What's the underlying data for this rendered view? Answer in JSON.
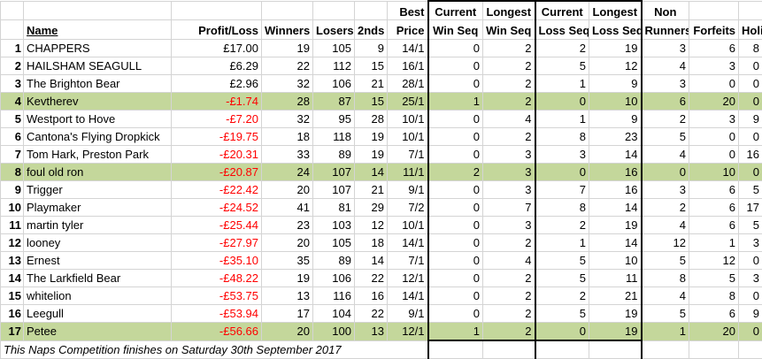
{
  "headers": {
    "rank": "",
    "name": "Name",
    "profit_loss": "Profit/Loss",
    "winners": "Winners",
    "losers": "Losers",
    "seconds": "2nds",
    "best_price": [
      "Best",
      "Price"
    ],
    "current_win_seq": [
      "Current",
      "Win Seq"
    ],
    "longest_win_seq": [
      "Longest",
      "Win Seq"
    ],
    "current_loss_seq": [
      "Current",
      "Loss Seq"
    ],
    "longest_loss_seq": [
      "Longest",
      "Loss Seq"
    ],
    "non_runners": [
      "Non",
      "Runners"
    ],
    "forfeits": "Forfeits",
    "holiday": "Holiday"
  },
  "rows": [
    {
      "rank": "1",
      "name": "CHAPPERS",
      "pl": "£17.00",
      "neg": false,
      "hl": false,
      "win": "19",
      "los": "105",
      "sec": "9",
      "best": "14/1",
      "cws": "0",
      "lws": "2",
      "cls": "2",
      "lls": "19",
      "nr": "3",
      "ff": "6",
      "hol": "8"
    },
    {
      "rank": "2",
      "name": "HAILSHAM SEAGULL",
      "pl": "£6.29",
      "neg": false,
      "hl": false,
      "win": "22",
      "los": "112",
      "sec": "15",
      "best": "16/1",
      "cws": "0",
      "lws": "2",
      "cls": "5",
      "lls": "12",
      "nr": "4",
      "ff": "3",
      "hol": "0"
    },
    {
      "rank": "3",
      "name": "The Brighton Bear",
      "pl": "£2.96",
      "neg": false,
      "hl": false,
      "win": "32",
      "los": "106",
      "sec": "21",
      "best": "28/1",
      "cws": "0",
      "lws": "2",
      "cls": "1",
      "lls": "9",
      "nr": "3",
      "ff": "0",
      "hol": "0"
    },
    {
      "rank": "4",
      "name": "Kevtherev",
      "pl": "-£1.74",
      "neg": true,
      "hl": true,
      "win": "28",
      "los": "87",
      "sec": "15",
      "best": "25/1",
      "cws": "1",
      "lws": "2",
      "cls": "0",
      "lls": "10",
      "nr": "6",
      "ff": "20",
      "hol": "0"
    },
    {
      "rank": "5",
      "name": "Westport to Hove",
      "pl": "-£7.20",
      "neg": true,
      "hl": false,
      "win": "32",
      "los": "95",
      "sec": "28",
      "best": "10/1",
      "cws": "0",
      "lws": "4",
      "cls": "1",
      "lls": "9",
      "nr": "2",
      "ff": "3",
      "hol": "9"
    },
    {
      "rank": "6",
      "name": "Cantona's Flying Dropkick",
      "pl": "-£19.75",
      "neg": true,
      "hl": false,
      "win": "18",
      "los": "118",
      "sec": "19",
      "best": "10/1",
      "cws": "0",
      "lws": "2",
      "cls": "8",
      "lls": "23",
      "nr": "5",
      "ff": "0",
      "hol": "0"
    },
    {
      "rank": "7",
      "name": "Tom Hark, Preston Park",
      "pl": "-£20.31",
      "neg": true,
      "hl": false,
      "win": "33",
      "los": "89",
      "sec": "19",
      "best": "7/1",
      "cws": "0",
      "lws": "3",
      "cls": "3",
      "lls": "14",
      "nr": "4",
      "ff": "0",
      "hol": "16"
    },
    {
      "rank": "8",
      "name": "foul old ron",
      "pl": "-£20.87",
      "neg": true,
      "hl": true,
      "win": "24",
      "los": "107",
      "sec": "14",
      "best": "11/1",
      "cws": "2",
      "lws": "3",
      "cls": "0",
      "lls": "16",
      "nr": "0",
      "ff": "10",
      "hol": "0"
    },
    {
      "rank": "9",
      "name": "Trigger",
      "pl": "-£22.42",
      "neg": true,
      "hl": false,
      "win": "20",
      "los": "107",
      "sec": "21",
      "best": "9/1",
      "cws": "0",
      "lws": "3",
      "cls": "7",
      "lls": "16",
      "nr": "3",
      "ff": "6",
      "hol": "5"
    },
    {
      "rank": "10",
      "name": "Playmaker",
      "pl": "-£24.52",
      "neg": true,
      "hl": false,
      "win": "41",
      "los": "81",
      "sec": "29",
      "best": "7/2",
      "cws": "0",
      "lws": "7",
      "cls": "8",
      "lls": "14",
      "nr": "2",
      "ff": "6",
      "hol": "17"
    },
    {
      "rank": "11",
      "name": "martin tyler",
      "pl": "-£25.44",
      "neg": true,
      "hl": false,
      "win": "23",
      "los": "103",
      "sec": "12",
      "best": "10/1",
      "cws": "0",
      "lws": "3",
      "cls": "2",
      "lls": "19",
      "nr": "4",
      "ff": "6",
      "hol": "5"
    },
    {
      "rank": "12",
      "name": "looney",
      "pl": "-£27.97",
      "neg": true,
      "hl": false,
      "win": "20",
      "los": "105",
      "sec": "18",
      "best": "14/1",
      "cws": "0",
      "lws": "2",
      "cls": "1",
      "lls": "14",
      "nr": "12",
      "ff": "1",
      "hol": "3"
    },
    {
      "rank": "13",
      "name": "Ernest",
      "pl": "-£35.10",
      "neg": true,
      "hl": false,
      "win": "35",
      "los": "89",
      "sec": "14",
      "best": "7/1",
      "cws": "0",
      "lws": "4",
      "cls": "5",
      "lls": "10",
      "nr": "5",
      "ff": "12",
      "hol": "0"
    },
    {
      "rank": "14",
      "name": "The Larkfield Bear",
      "pl": "-£48.22",
      "neg": true,
      "hl": false,
      "win": "19",
      "los": "106",
      "sec": "22",
      "best": "12/1",
      "cws": "0",
      "lws": "2",
      "cls": "5",
      "lls": "11",
      "nr": "8",
      "ff": "5",
      "hol": "3"
    },
    {
      "rank": "15",
      "name": "whitelion",
      "pl": "-£53.75",
      "neg": true,
      "hl": false,
      "win": "13",
      "los": "116",
      "sec": "16",
      "best": "14/1",
      "cws": "0",
      "lws": "2",
      "cls": "2",
      "lls": "21",
      "nr": "4",
      "ff": "8",
      "hol": "0"
    },
    {
      "rank": "16",
      "name": "Leegull",
      "pl": "-£53.94",
      "neg": true,
      "hl": false,
      "win": "17",
      "los": "104",
      "sec": "22",
      "best": "9/1",
      "cws": "0",
      "lws": "2",
      "cls": "5",
      "lls": "19",
      "nr": "5",
      "ff": "6",
      "hol": "9"
    },
    {
      "rank": "17",
      "name": "Petee",
      "pl": "-£56.66",
      "neg": true,
      "hl": true,
      "win": "20",
      "los": "100",
      "sec": "13",
      "best": "12/1",
      "cws": "1",
      "lws": "2",
      "cls": "0",
      "lls": "19",
      "nr": "1",
      "ff": "20",
      "hol": "0"
    }
  ],
  "footer": "This Naps Competition finishes on Saturday 30th September 2017",
  "colors": {
    "highlight": "#c4d79b",
    "negative": "#ff0000",
    "gridline": "#d4d4d4"
  }
}
